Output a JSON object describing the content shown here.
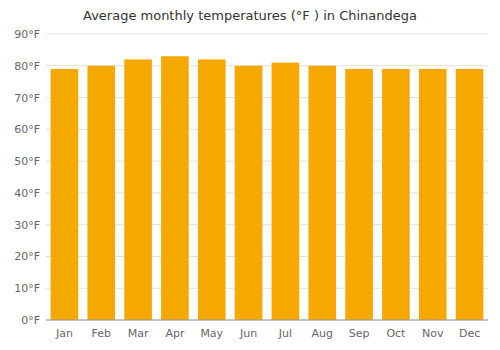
{
  "chart_data": {
    "type": "bar",
    "title": "Average monthly temperatures (°F ) in Chinandega",
    "categories": [
      "Jan",
      "Feb",
      "Mar",
      "Apr",
      "May",
      "Jun",
      "Jul",
      "Aug",
      "Sep",
      "Oct",
      "Nov",
      "Dec"
    ],
    "values": [
      79,
      80,
      82,
      83,
      82,
      80,
      81,
      80,
      79,
      79,
      79,
      79
    ],
    "color": "#F5A800",
    "ylim": [
      0,
      90
    ],
    "yticks": [
      {
        "value": 0,
        "label": "0°F"
      },
      {
        "value": 10,
        "label": "10°F"
      },
      {
        "value": 20,
        "label": "20°F"
      },
      {
        "value": 30,
        "label": "30°F"
      },
      {
        "value": 40,
        "label": "40°F"
      },
      {
        "value": 50,
        "label": "50°F"
      },
      {
        "value": 60,
        "label": "60°F"
      },
      {
        "value": 70,
        "label": "70°F"
      },
      {
        "value": 80,
        "label": "80°F"
      },
      {
        "value": 90,
        "label": "90°F"
      }
    ],
    "grid": true
  }
}
